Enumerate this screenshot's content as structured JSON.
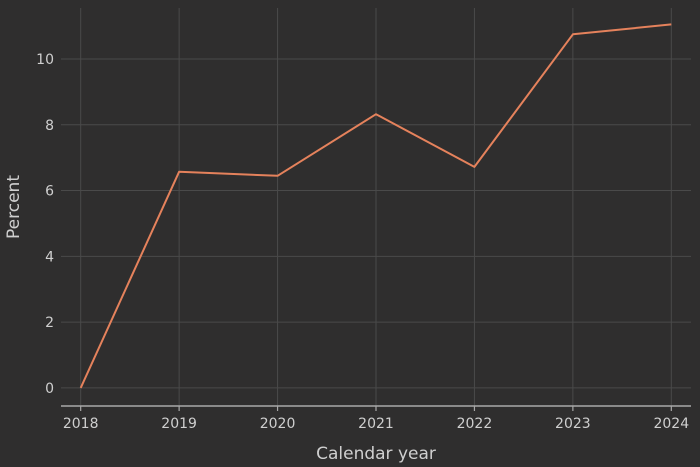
{
  "chart_data": {
    "type": "line",
    "xlabel": "Calendar year",
    "ylabel": "Percent",
    "x": [
      2018,
      2019,
      2020,
      2021,
      2022,
      2023,
      2024
    ],
    "series": [
      {
        "values": [
          0.0,
          6.57,
          6.45,
          8.32,
          6.72,
          10.75,
          11.05
        ],
        "color": "#e5825c"
      }
    ],
    "xlim": [
      2017.8,
      2024.2
    ],
    "ylim": [
      -0.55,
      11.55
    ],
    "x_ticks": [
      2018,
      2019,
      2020,
      2021,
      2022,
      2023,
      2024
    ],
    "y_ticks": [
      0,
      2,
      4,
      6,
      8,
      10
    ],
    "grid": true,
    "legend": "none",
    "colors": {
      "background": "#2f2e2e",
      "grid": "#4a4a4a",
      "text": "#cfcfcf",
      "axis": "#a8a8a8"
    }
  }
}
